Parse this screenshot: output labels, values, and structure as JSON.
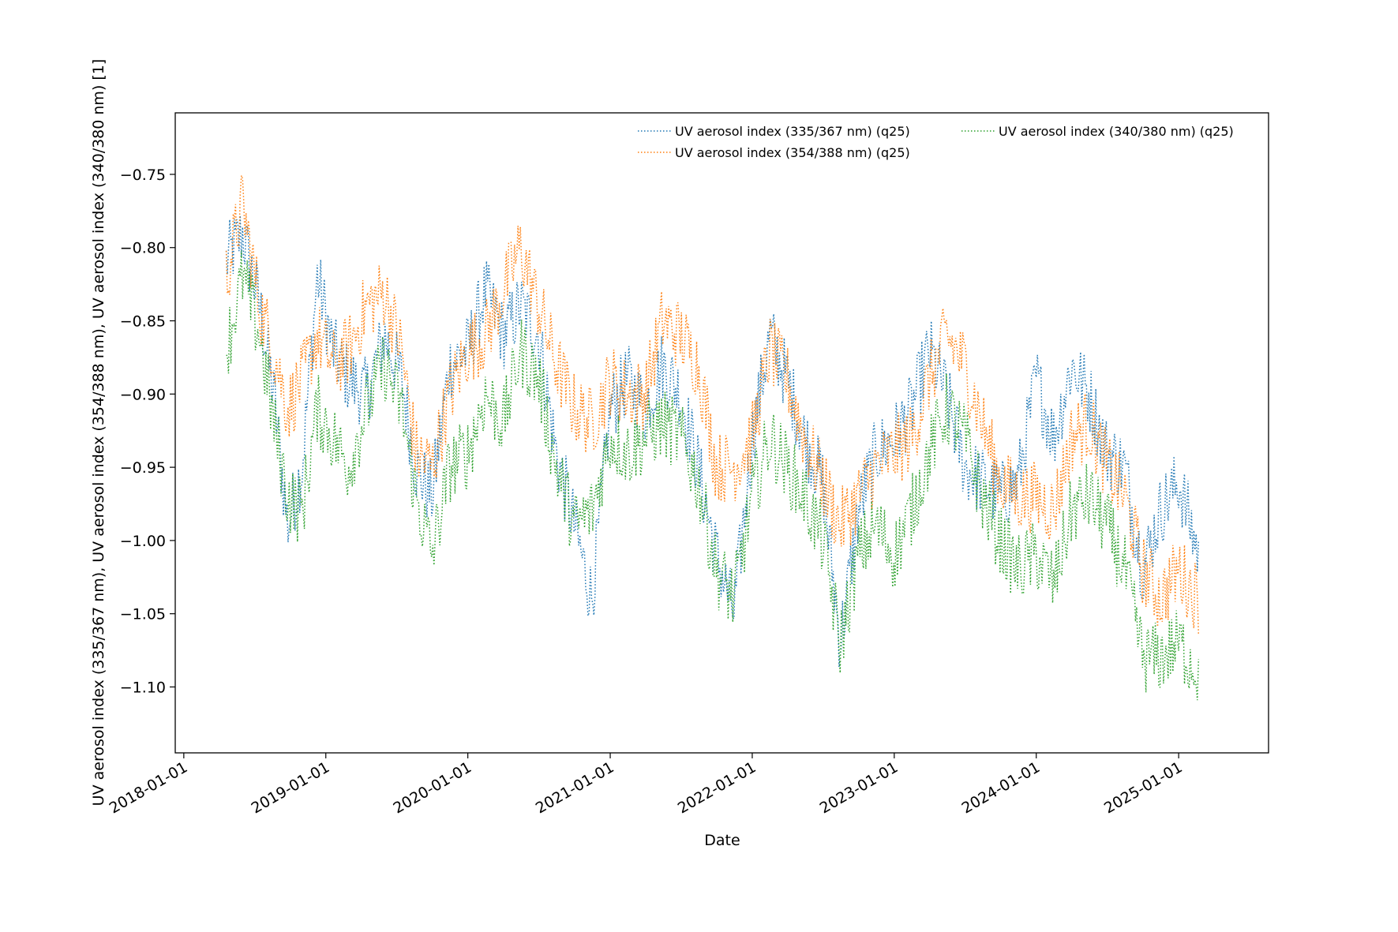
{
  "chart_data": {
    "type": "line",
    "xlabel": "Date",
    "ylabel": "UV aerosol index (335/367 nm), UV aerosol index (354/388 nm), UV aerosol index (340/380 nm) [1]",
    "x_tick_labels": [
      "2018-01-01",
      "2019-01-01",
      "2020-01-01",
      "2021-01-01",
      "2022-01-01",
      "2023-01-01",
      "2024-01-01",
      "2025-01-01"
    ],
    "y_tick_labels": [
      "-0.75",
      "-0.80",
      "-0.85",
      "-0.90",
      "-0.95",
      "-1.00",
      "-1.05",
      "-1.10"
    ],
    "y_ticks": [
      -0.75,
      -0.8,
      -0.85,
      -0.9,
      -0.95,
      -1.0,
      -1.05,
      -1.1
    ],
    "xlim": [
      "2017-12-10",
      "2025-08-20"
    ],
    "ylim": [
      -1.145,
      -0.708
    ],
    "x_range": [
      "2018-04-20",
      "2025-02-22"
    ],
    "grid": false,
    "legend_position": "top-right",
    "line_style": "dotted",
    "series": [
      {
        "name": "UV aerosol index (335/367 nm) (q25)",
        "color": "#1f77b4",
        "x": [
          "2018-04-20",
          "2018-06-01",
          "2018-07-15",
          "2018-08-20",
          "2018-09-25",
          "2018-11-01",
          "2018-12-10",
          "2019-01-20",
          "2019-03-01",
          "2019-04-15",
          "2019-06-01",
          "2019-07-15",
          "2019-08-20",
          "2019-10-01",
          "2019-11-15",
          "2020-01-01",
          "2020-02-15",
          "2020-04-01",
          "2020-05-15",
          "2020-07-01",
          "2020-08-15",
          "2020-10-01",
          "2020-11-15",
          "2021-01-01",
          "2021-02-15",
          "2021-04-01",
          "2021-05-15",
          "2021-07-01",
          "2021-08-15",
          "2021-10-01",
          "2021-11-15",
          "2022-01-01",
          "2022-02-15",
          "2022-04-01",
          "2022-05-15",
          "2022-07-01",
          "2022-08-15",
          "2022-10-01",
          "2022-11-15",
          "2023-01-01",
          "2023-02-15",
          "2023-04-01",
          "2023-05-15",
          "2023-07-01",
          "2023-08-15",
          "2023-10-01",
          "2023-11-15",
          "2024-01-01",
          "2024-02-15",
          "2024-04-01",
          "2024-05-15",
          "2024-07-01",
          "2024-08-15",
          "2024-10-01",
          "2024-11-15",
          "2025-01-01",
          "2025-02-22"
        ],
        "values": [
          -0.81,
          -0.79,
          -0.84,
          -0.9,
          -0.99,
          -0.95,
          -0.82,
          -0.87,
          -0.89,
          -0.9,
          -0.86,
          -0.89,
          -0.95,
          -0.97,
          -0.88,
          -0.87,
          -0.83,
          -0.86,
          -0.84,
          -0.86,
          -0.94,
          -0.99,
          -1.04,
          -0.91,
          -0.89,
          -0.91,
          -0.88,
          -0.9,
          -0.95,
          -1.01,
          -1.05,
          -0.93,
          -0.86,
          -0.89,
          -0.93,
          -0.96,
          -1.07,
          -0.98,
          -0.94,
          -0.93,
          -0.91,
          -0.87,
          -0.9,
          -0.95,
          -0.96,
          -0.97,
          -0.96,
          -0.89,
          -0.93,
          -0.88,
          -0.9,
          -0.94,
          -0.95,
          -1.02,
          -0.98,
          -0.96,
          -1.01
        ]
      },
      {
        "name": "UV aerosol index (354/388 nm) (q25)",
        "color": "#ff7f0e",
        "x": [
          "2018-04-20",
          "2018-06-01",
          "2018-07-15",
          "2018-08-20",
          "2018-09-25",
          "2018-11-01",
          "2018-12-10",
          "2019-01-20",
          "2019-03-01",
          "2019-04-15",
          "2019-06-01",
          "2019-07-15",
          "2019-08-20",
          "2019-10-01",
          "2019-11-15",
          "2020-01-01",
          "2020-02-15",
          "2020-04-01",
          "2020-05-15",
          "2020-07-01",
          "2020-08-15",
          "2020-10-01",
          "2020-11-15",
          "2021-01-01",
          "2021-02-15",
          "2021-04-01",
          "2021-05-15",
          "2021-07-01",
          "2021-08-15",
          "2021-10-01",
          "2021-11-15",
          "2022-01-01",
          "2022-02-15",
          "2022-04-01",
          "2022-05-15",
          "2022-07-01",
          "2022-08-15",
          "2022-10-01",
          "2022-11-15",
          "2023-01-01",
          "2023-02-15",
          "2023-04-01",
          "2023-05-15",
          "2023-07-01",
          "2023-08-15",
          "2023-10-01",
          "2023-11-15",
          "2024-01-01",
          "2024-02-15",
          "2024-04-01",
          "2024-05-15",
          "2024-07-01",
          "2024-08-15",
          "2024-10-01",
          "2024-11-15",
          "2025-01-01",
          "2025-02-22"
        ],
        "values": [
          -0.82,
          -0.77,
          -0.84,
          -0.87,
          -0.91,
          -0.89,
          -0.86,
          -0.88,
          -0.87,
          -0.84,
          -0.83,
          -0.87,
          -0.94,
          -0.95,
          -0.9,
          -0.87,
          -0.86,
          -0.83,
          -0.8,
          -0.84,
          -0.88,
          -0.91,
          -0.92,
          -0.89,
          -0.9,
          -0.9,
          -0.85,
          -0.86,
          -0.88,
          -0.95,
          -0.95,
          -0.93,
          -0.87,
          -0.89,
          -0.93,
          -0.96,
          -0.99,
          -0.97,
          -0.95,
          -0.94,
          -0.93,
          -0.89,
          -0.86,
          -0.88,
          -0.92,
          -0.96,
          -0.97,
          -0.97,
          -0.98,
          -0.93,
          -0.92,
          -0.95,
          -0.97,
          -1.02,
          -1.04,
          -1.02,
          -1.04
        ]
      },
      {
        "name": "UV aerosol index (340/380 nm) (q25)",
        "color": "#2ca02c",
        "x": [
          "2018-04-20",
          "2018-06-01",
          "2018-07-15",
          "2018-08-20",
          "2018-09-25",
          "2018-11-01",
          "2018-12-10",
          "2019-01-20",
          "2019-03-01",
          "2019-04-15",
          "2019-06-01",
          "2019-07-15",
          "2019-08-20",
          "2019-10-01",
          "2019-11-15",
          "2020-01-01",
          "2020-02-15",
          "2020-04-01",
          "2020-05-15",
          "2020-07-01",
          "2020-08-15",
          "2020-10-01",
          "2020-11-15",
          "2021-01-01",
          "2021-02-15",
          "2021-04-01",
          "2021-05-15",
          "2021-07-01",
          "2021-08-15",
          "2021-10-01",
          "2021-11-15",
          "2022-01-01",
          "2022-02-15",
          "2022-04-01",
          "2022-05-15",
          "2022-07-01",
          "2022-08-15",
          "2022-10-01",
          "2022-11-15",
          "2023-01-01",
          "2023-02-15",
          "2023-04-01",
          "2023-05-15",
          "2023-07-01",
          "2023-08-15",
          "2023-10-01",
          "2023-11-15",
          "2024-01-01",
          "2024-02-15",
          "2024-04-01",
          "2024-05-15",
          "2024-07-01",
          "2024-08-15",
          "2024-10-01",
          "2024-11-15",
          "2025-01-01",
          "2025-02-22"
        ],
        "values": [
          -0.87,
          -0.82,
          -0.86,
          -0.92,
          -0.97,
          -0.98,
          -0.91,
          -0.93,
          -0.95,
          -0.91,
          -0.88,
          -0.91,
          -0.97,
          -1.01,
          -0.95,
          -0.94,
          -0.9,
          -0.92,
          -0.87,
          -0.89,
          -0.95,
          -0.99,
          -0.98,
          -0.93,
          -0.94,
          -0.93,
          -0.92,
          -0.93,
          -0.96,
          -1.02,
          -1.04,
          -0.97,
          -0.93,
          -0.95,
          -0.97,
          -1.0,
          -1.07,
          -1.01,
          -0.99,
          -1.01,
          -0.98,
          -0.94,
          -0.91,
          -0.93,
          -0.97,
          -1.0,
          -1.02,
          -1.01,
          -1.03,
          -0.98,
          -0.97,
          -0.99,
          -1.02,
          -1.08,
          -1.08,
          -1.07,
          -1.09
        ]
      }
    ]
  }
}
